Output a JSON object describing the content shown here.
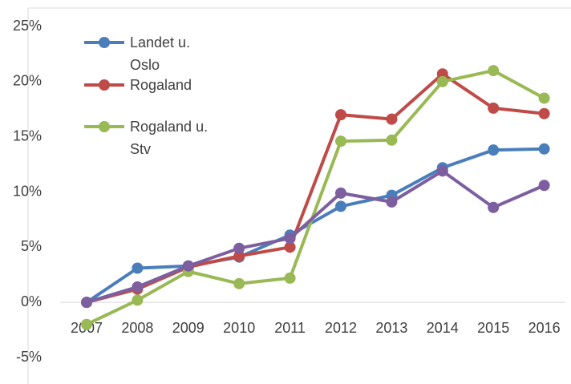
{
  "chart_data": {
    "type": "line",
    "categories": [
      "2007",
      "2008",
      "2009",
      "2010",
      "2011",
      "2012",
      "2013",
      "2014",
      "2015",
      "2016"
    ],
    "series": [
      {
        "name": "Landet u. Oslo",
        "color": "#4a7ebb",
        "values": [
          0,
          3.1,
          3.3,
          4.1,
          6.1,
          8.7,
          9.7,
          12.2,
          13.8,
          13.9
        ]
      },
      {
        "name": "Rogaland",
        "color": "#be4b48",
        "values": [
          0,
          1.2,
          3.2,
          4.2,
          5.0,
          17.0,
          16.6,
          20.7,
          17.6,
          17.1
        ]
      },
      {
        "name": "Rogaland u. Stv",
        "color": "#98b954",
        "values": [
          -2.0,
          0.2,
          2.8,
          1.7,
          2.2,
          14.6,
          14.7,
          20.0,
          21.0,
          18.5
        ]
      },
      {
        "color": "#7d5fa0",
        "values": [
          0,
          1.4,
          3.3,
          4.9,
          5.8,
          9.9,
          9.1,
          11.9,
          8.6,
          10.6
        ]
      }
    ],
    "ylim": [
      -5,
      25
    ],
    "yticks": [
      {
        "value": -5,
        "label": "-5%"
      },
      {
        "value": 0,
        "label": "0%"
      },
      {
        "value": 5,
        "label": "5%"
      },
      {
        "value": 10,
        "label": "10%"
      },
      {
        "value": 15,
        "label": "15%"
      },
      {
        "value": 20,
        "label": "20%"
      },
      {
        "value": 25,
        "label": "25%"
      }
    ],
    "grid": false,
    "legend": "upper left"
  }
}
